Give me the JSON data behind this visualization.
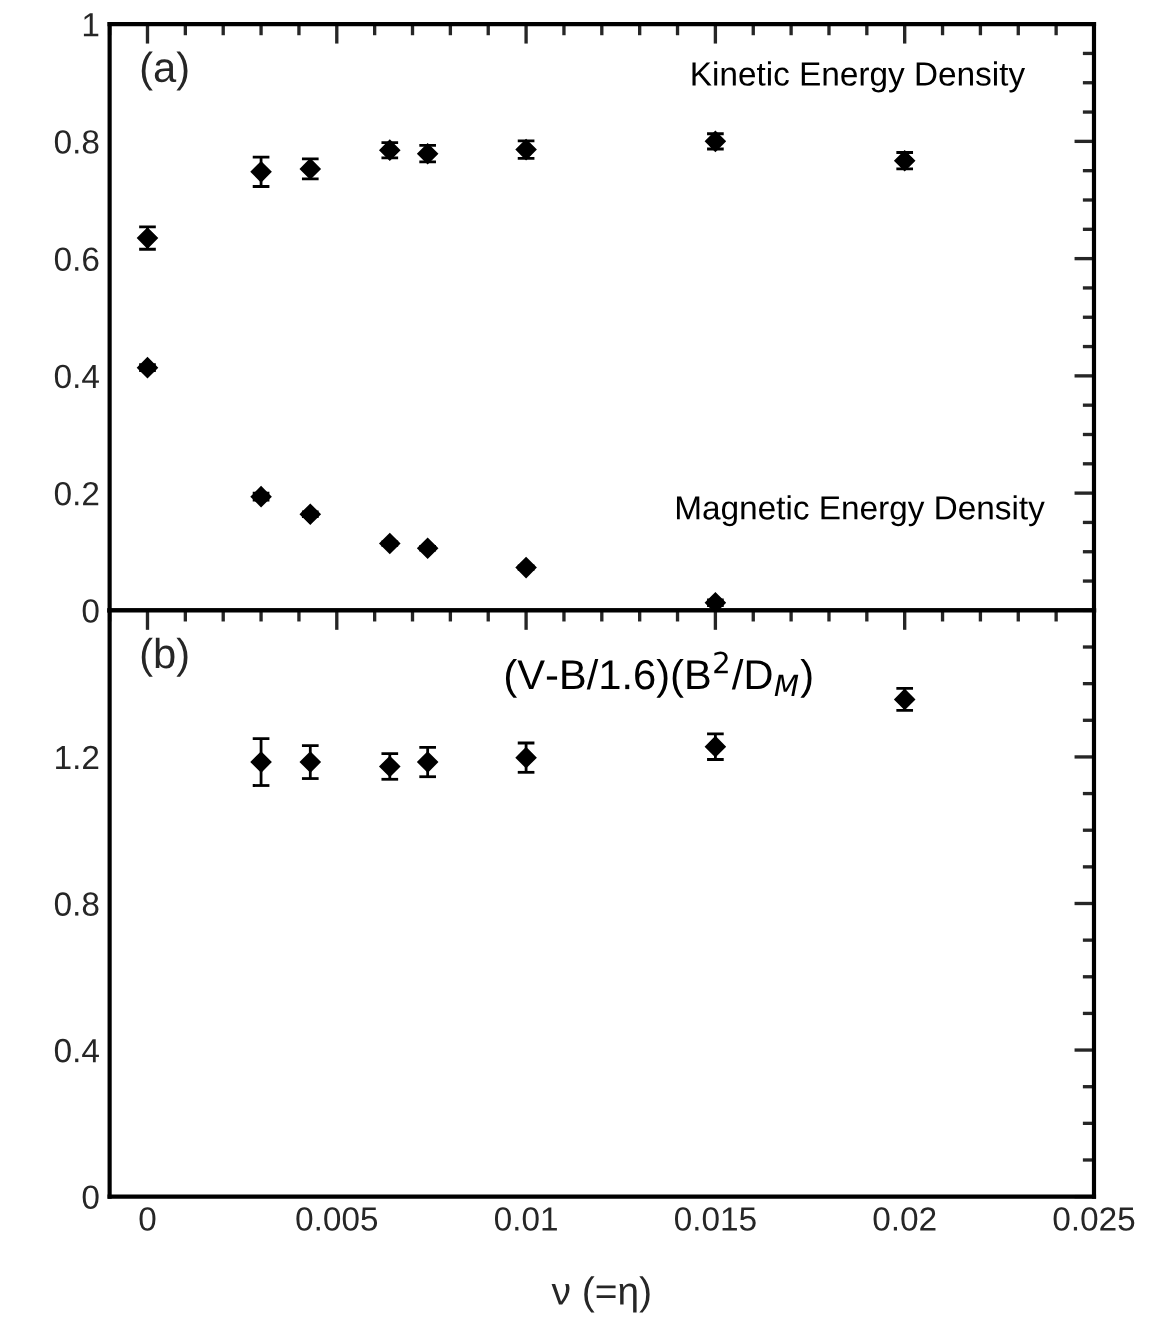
{
  "chart_data": [
    {
      "type": "scatter",
      "annotations": [
        "(a)"
      ],
      "xlim": [
        -0.001,
        0.025
      ],
      "ylim": [
        0,
        1
      ],
      "yticks": [
        0,
        0.2,
        0.4,
        0.6,
        0.8,
        1
      ],
      "tick_labels": "y",
      "marker": "diamond",
      "grid": false,
      "legend": false,
      "series": [
        {
          "name": "Kinetic Energy Density",
          "color": "#000000",
          "x": [
            0,
            0.003,
            0.0043,
            0.0064,
            0.0074,
            0.01,
            0.015,
            0.02
          ],
          "values": [
            0.635,
            0.748,
            0.753,
            0.785,
            0.779,
            0.786,
            0.8,
            0.767
          ],
          "errors": [
            0.019,
            0.025,
            0.017,
            0.013,
            0.014,
            0.015,
            0.013,
            0.014
          ]
        },
        {
          "name": "Magnetic Energy Density",
          "color": "#000000",
          "x": [
            0,
            0.003,
            0.0043,
            0.0064,
            0.0074,
            0.01,
            0.015
          ],
          "values": [
            0.414,
            0.194,
            0.164,
            0.114,
            0.106,
            0.073,
            0.013
          ],
          "errors": [
            0.005,
            0.006,
            0.004,
            0.003,
            0.003,
            0.003,
            0.005
          ]
        }
      ]
    },
    {
      "type": "scatter",
      "annotations": [
        "(b)"
      ],
      "xlabel": "ν (=η)",
      "xlim": [
        -0.001,
        0.025
      ],
      "xticks": [
        0,
        0.005,
        0.01,
        0.015,
        0.02,
        0.025
      ],
      "ylim": [
        0,
        1.6
      ],
      "yticks": [
        0,
        0.4,
        0.8,
        1.2
      ],
      "marker": "diamond",
      "grid": false,
      "legend": false,
      "series": [
        {
          "name": "(V-B/1.6)(B$^{2}$/D$_{M}$)",
          "color": "#000000",
          "x": [
            0.003,
            0.0043,
            0.0064,
            0.0074,
            0.01,
            0.015,
            0.02
          ],
          "values": [
            1.186,
            1.186,
            1.174,
            1.186,
            1.198,
            1.228,
            1.357
          ],
          "errors": [
            0.064,
            0.045,
            0.035,
            0.04,
            0.04,
            0.035,
            0.03
          ]
        }
      ]
    }
  ]
}
